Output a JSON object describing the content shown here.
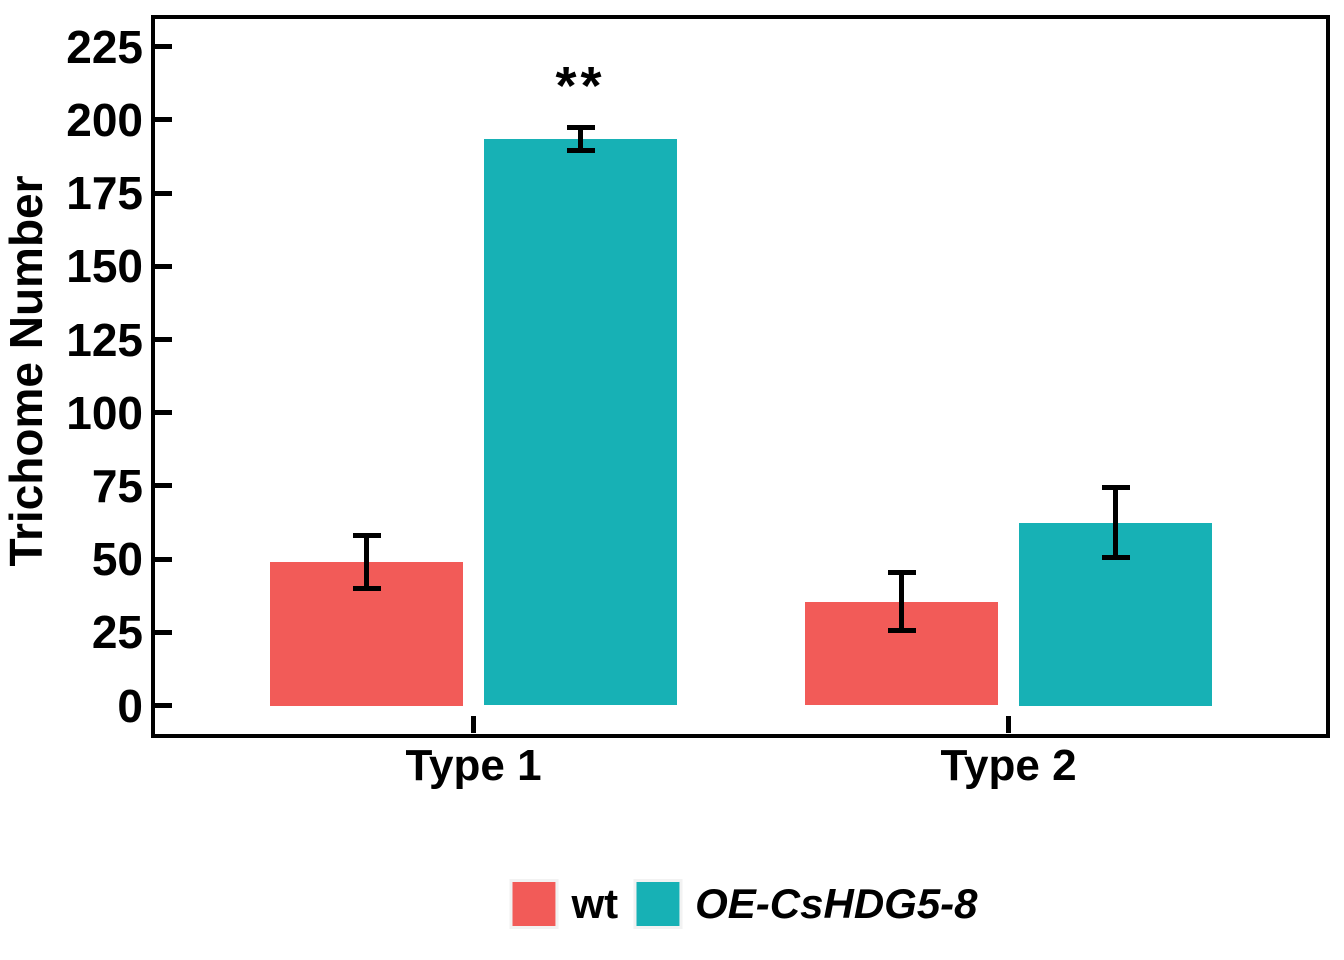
{
  "chart_data": {
    "type": "bar",
    "title": "",
    "xlabel": "",
    "ylabel": "Trichome Number",
    "categories": [
      "Type 1",
      "Type 2"
    ],
    "series": [
      {
        "name": "wt",
        "color": "#F25B58",
        "italic": false,
        "values": [
          49,
          35.5
        ],
        "errors": [
          9,
          10
        ]
      },
      {
        "name": "OE-CsHDG5-8",
        "color": "#17B1B5",
        "italic": true,
        "values": [
          193.5,
          62.5
        ],
        "errors": [
          4,
          12
        ]
      }
    ],
    "yticks": [
      0,
      25,
      50,
      75,
      100,
      125,
      150,
      175,
      200,
      225
    ],
    "ylim": [
      0,
      236
    ],
    "grid": false,
    "error_bars": true,
    "legend_position": "bottom",
    "annotations": [
      {
        "text": "**",
        "category": "Type 1",
        "series": "OE-CsHDG5-8"
      }
    ]
  },
  "colors": {
    "axis": "#000000",
    "background": "#FFFFFF"
  }
}
